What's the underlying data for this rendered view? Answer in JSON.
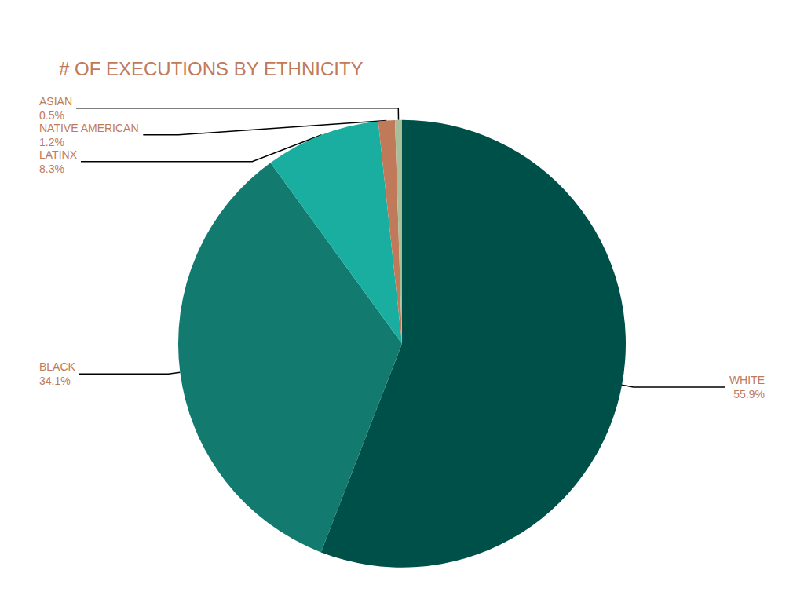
{
  "chart_data": {
    "type": "pie",
    "title": "# OF EXECUTIONS BY ETHNICITY",
    "categories": [
      "WHITE",
      "BLACK",
      "LATINX",
      "NATIVE AMERICAN",
      "ASIAN"
    ],
    "values": [
      55.9,
      34.1,
      8.3,
      1.2,
      0.5
    ],
    "value_labels": [
      "55.9%",
      "34.1%",
      "8.3%",
      "1.2%",
      "0.5%"
    ],
    "colors": [
      "#00504a",
      "#127a6f",
      "#1aaea1",
      "#c07a5a",
      "#a8bd9a"
    ],
    "data_labels": true
  }
}
